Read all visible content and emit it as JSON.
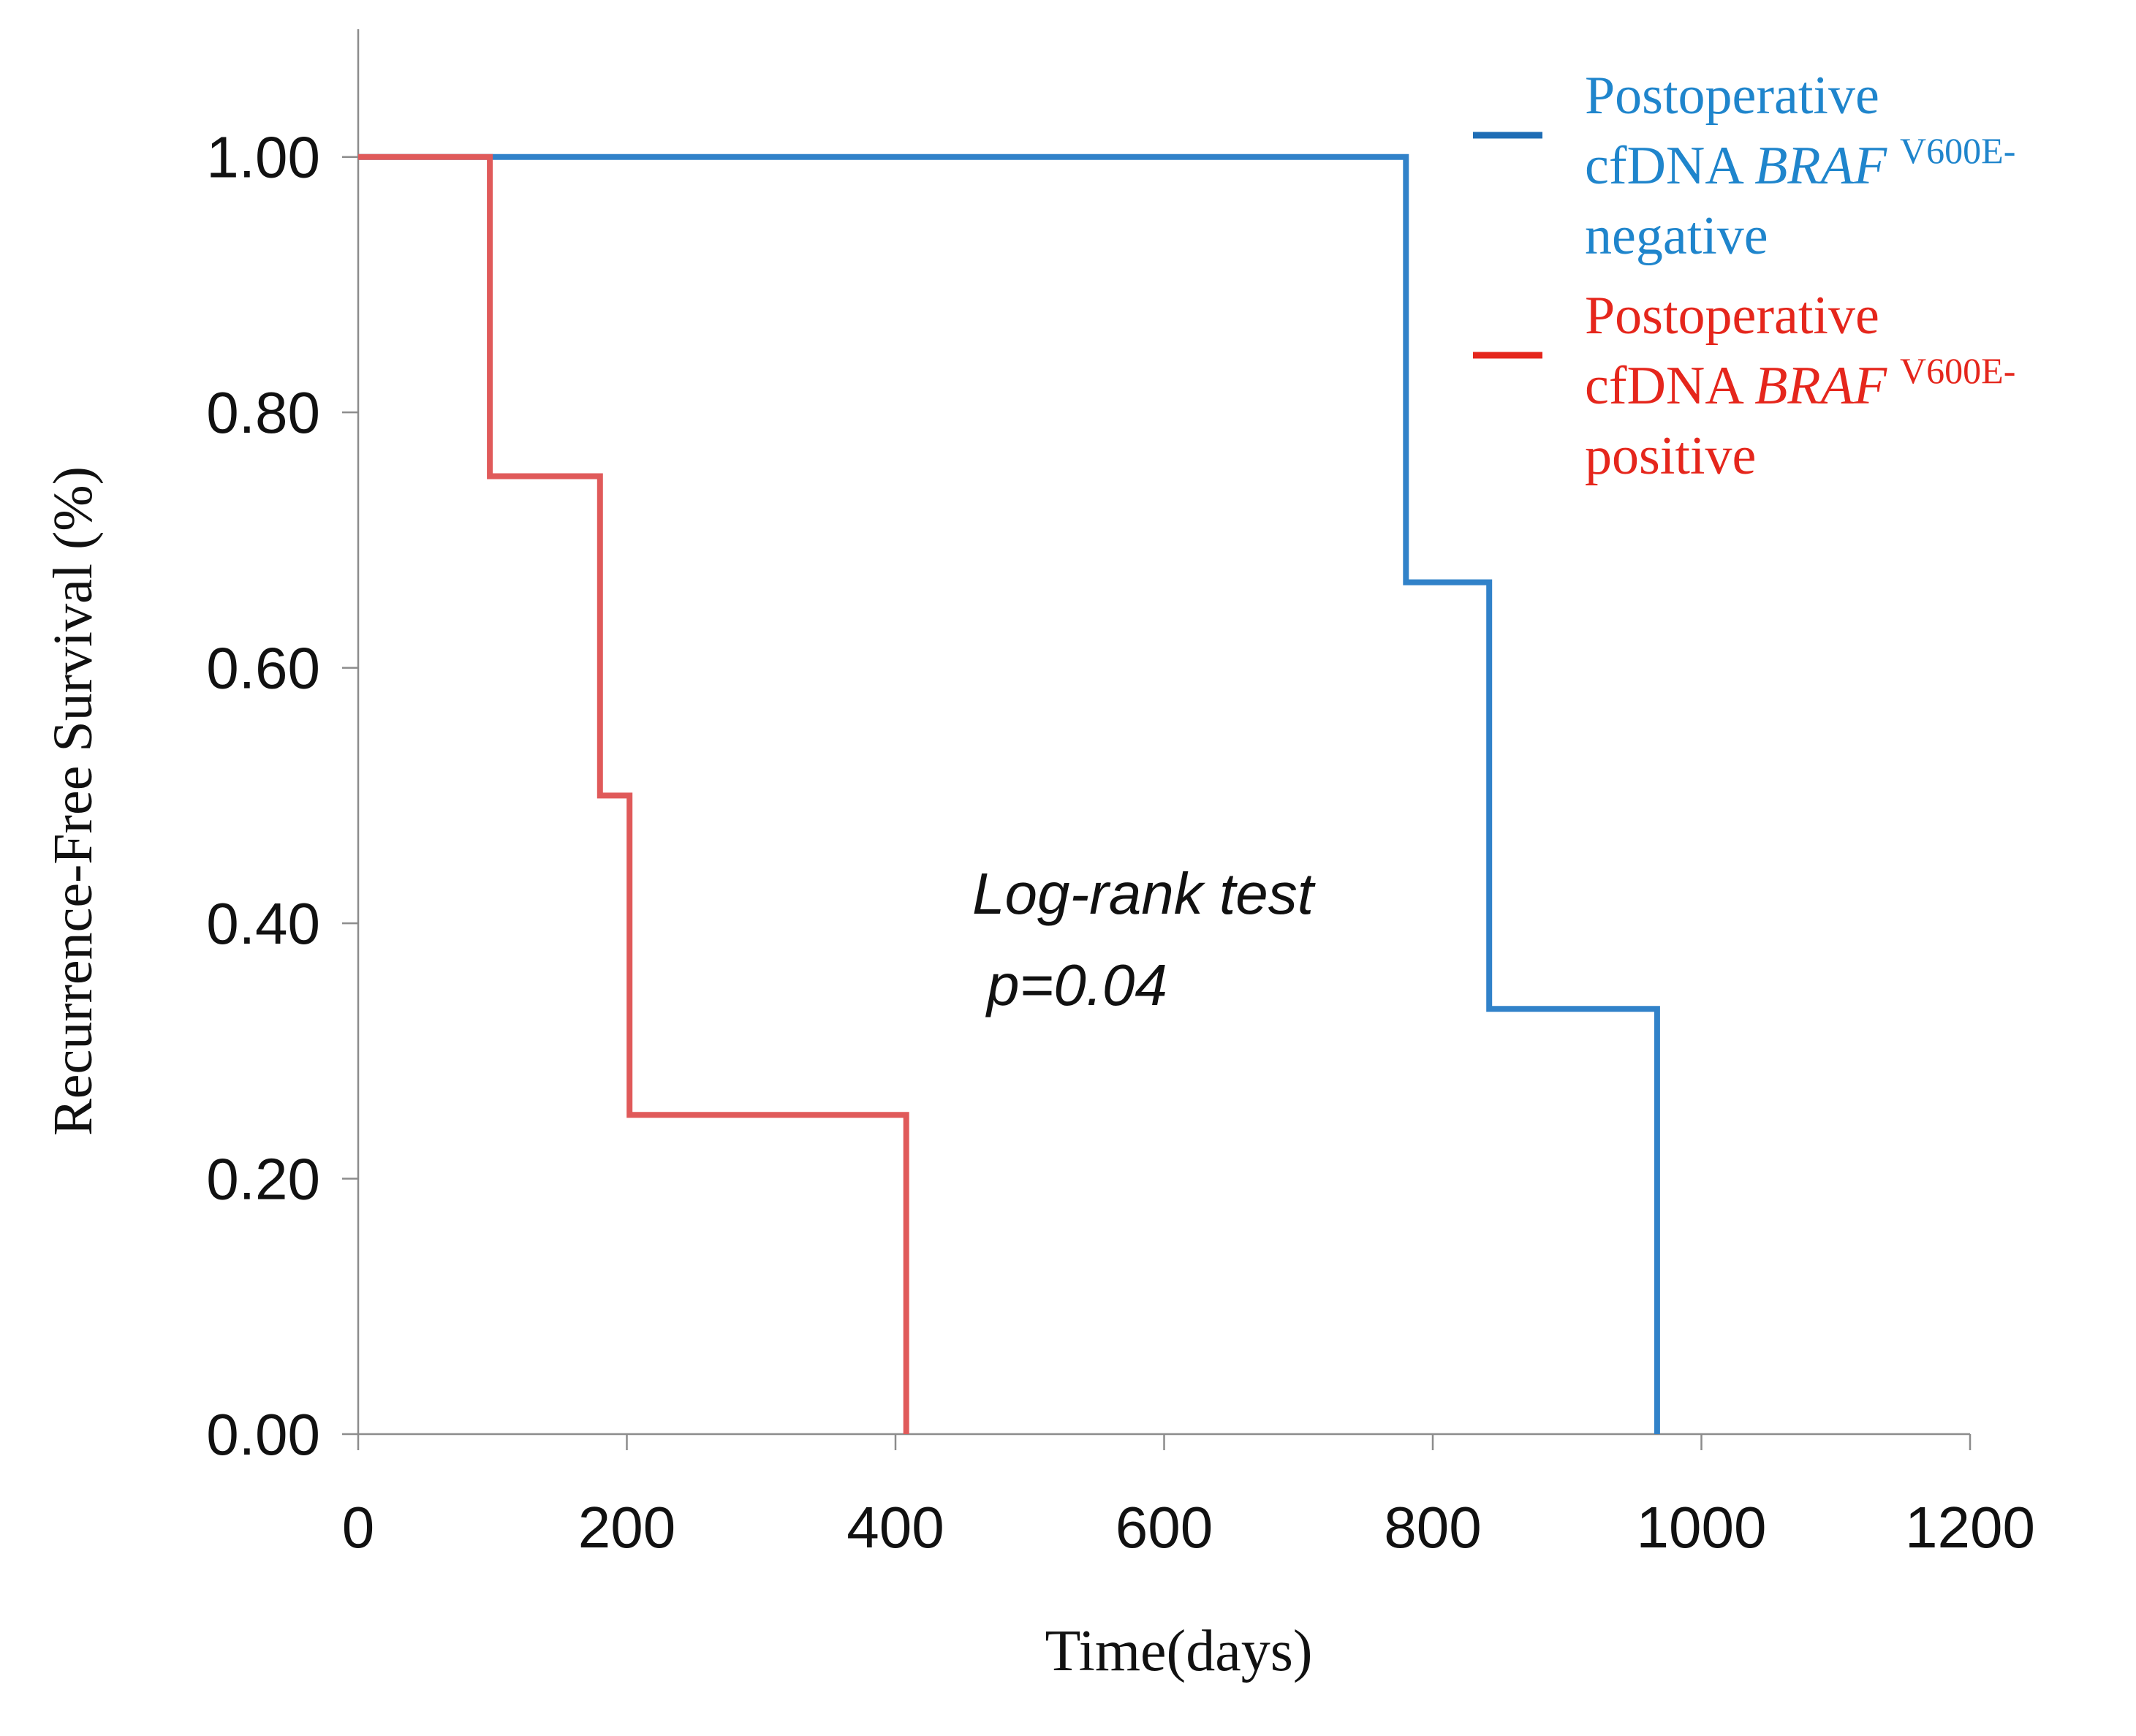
{
  "chart_data": {
    "type": "line",
    "subtype": "kaplan-meier-step",
    "title": "",
    "xlabel": "Time(days)",
    "ylabel": "Recurrence-Free Survival (%)",
    "xlim": [
      0,
      1200
    ],
    "ylim": [
      0,
      1.1
    ],
    "xticks": [
      0,
      200,
      400,
      600,
      800,
      1000,
      1200
    ],
    "xtick_labels": [
      "0",
      "200",
      "400",
      "600",
      "800",
      "1000",
      "1200"
    ],
    "yticks": [
      0,
      0.2,
      0.4,
      0.6,
      0.8,
      1.0
    ],
    "ytick_labels": [
      "0.00",
      "0.20",
      "0.40",
      "0.60",
      "0.80",
      "1.00"
    ],
    "grid": false,
    "legend_position": "top-right",
    "series": [
      {
        "name": "Postoperative cfDNA BRAF V600E-negative",
        "legend_lines": [
          {
            "pre": "Postoperative",
            "italic": "",
            "sup": ""
          },
          {
            "pre": "cfDNA ",
            "italic": "BRAF",
            "sup": "V600E-"
          },
          {
            "pre": "negative",
            "italic": "",
            "sup": ""
          }
        ],
        "color": "#3182c9",
        "legend_text_color": "#1f85cc",
        "legend_line_color": "#1e6db5",
        "x": [
          0,
          780,
          780,
          842,
          842,
          967,
          967
        ],
        "y": [
          1.0,
          1.0,
          0.667,
          0.667,
          0.333,
          0.333,
          0.0
        ]
      },
      {
        "name": "Postoperative cfDNA BRAF V600E-positive",
        "legend_lines": [
          {
            "pre": "Postoperative",
            "italic": "",
            "sup": ""
          },
          {
            "pre": "cfDNA ",
            "italic": "BRAF",
            "sup": "V600E-"
          },
          {
            "pre": "positive",
            "italic": "",
            "sup": ""
          }
        ],
        "color": "#e05a5a",
        "legend_text_color": "#e5261c",
        "legend_line_color": "#e5261c",
        "x": [
          0,
          98,
          98,
          180,
          180,
          202,
          202,
          408,
          408
        ],
        "y": [
          1.0,
          1.0,
          0.75,
          0.75,
          0.5,
          0.5,
          0.25,
          0.25,
          0.0
        ]
      }
    ],
    "annotation": {
      "line1": "Log-rank test",
      "line2": "p=0.04"
    }
  }
}
